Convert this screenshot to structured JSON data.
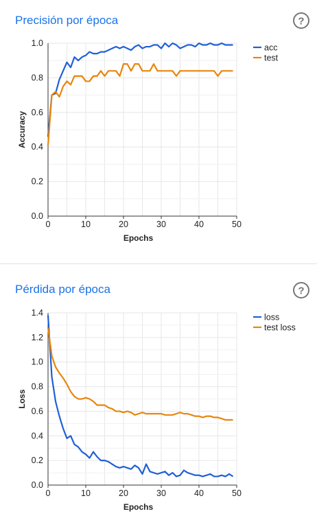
{
  "colors": {
    "series1": "#1f5fd6",
    "series2": "#e8850c",
    "title": "#1a73e8"
  },
  "chart_data": [
    {
      "type": "line",
      "title": "Precisión por época",
      "xlabel": "Epochs",
      "ylabel": "Accuracy",
      "xlim": [
        0,
        50
      ],
      "ylim": [
        0,
        1
      ],
      "xticks": [
        0,
        10,
        20,
        30,
        40,
        50
      ],
      "yticks": [
        "0.0",
        "0.2",
        "0.4",
        "0.6",
        "0.8",
        "1.0"
      ],
      "grid": true,
      "legend": "right",
      "x": [
        0,
        1,
        2,
        3,
        4,
        5,
        6,
        7,
        8,
        9,
        10,
        11,
        12,
        13,
        14,
        15,
        16,
        17,
        18,
        19,
        20,
        21,
        22,
        23,
        24,
        25,
        26,
        27,
        28,
        29,
        30,
        31,
        32,
        33,
        34,
        35,
        36,
        37,
        38,
        39,
        40,
        41,
        42,
        43,
        44,
        45,
        46,
        47,
        48,
        49
      ],
      "series": [
        {
          "name": "acc",
          "values": [
            0.46,
            0.7,
            0.71,
            0.79,
            0.84,
            0.89,
            0.86,
            0.92,
            0.9,
            0.92,
            0.93,
            0.95,
            0.94,
            0.94,
            0.95,
            0.95,
            0.96,
            0.97,
            0.98,
            0.97,
            0.98,
            0.97,
            0.96,
            0.98,
            0.99,
            0.97,
            0.98,
            0.98,
            0.99,
            0.99,
            0.97,
            1.0,
            0.98,
            1.0,
            0.99,
            0.97,
            0.98,
            0.99,
            0.99,
            0.98,
            1.0,
            0.99,
            0.99,
            1.0,
            0.99,
            0.99,
            1.0,
            0.99,
            0.99,
            0.99
          ]
        },
        {
          "name": "test",
          "values": [
            0.41,
            0.7,
            0.72,
            0.69,
            0.75,
            0.78,
            0.76,
            0.81,
            0.81,
            0.81,
            0.78,
            0.78,
            0.81,
            0.81,
            0.84,
            0.81,
            0.84,
            0.84,
            0.84,
            0.81,
            0.88,
            0.88,
            0.84,
            0.88,
            0.88,
            0.84,
            0.84,
            0.84,
            0.88,
            0.84,
            0.84,
            0.84,
            0.84,
            0.84,
            0.81,
            0.84,
            0.84,
            0.84,
            0.84,
            0.84,
            0.84,
            0.84,
            0.84,
            0.84,
            0.84,
            0.81,
            0.84,
            0.84,
            0.84,
            0.84
          ]
        }
      ]
    },
    {
      "type": "line",
      "title": "Pérdida por época",
      "xlabel": "Epochs",
      "ylabel": "Loss",
      "xlim": [
        0,
        50
      ],
      "ylim": [
        0,
        1.4
      ],
      "xticks": [
        0,
        10,
        20,
        30,
        40,
        50
      ],
      "yticks": [
        "0.0",
        "0.2",
        "0.4",
        "0.6",
        "0.8",
        "1.0",
        "1.2",
        "1.4"
      ],
      "grid": true,
      "legend": "right",
      "x": [
        0,
        1,
        2,
        3,
        4,
        5,
        6,
        7,
        8,
        9,
        10,
        11,
        12,
        13,
        14,
        15,
        16,
        17,
        18,
        19,
        20,
        21,
        22,
        23,
        24,
        25,
        26,
        27,
        28,
        29,
        30,
        31,
        32,
        33,
        34,
        35,
        36,
        37,
        38,
        39,
        40,
        41,
        42,
        43,
        44,
        45,
        46,
        47,
        48,
        49
      ],
      "series": [
        {
          "name": "loss",
          "values": [
            1.38,
            0.88,
            0.68,
            0.56,
            0.46,
            0.38,
            0.4,
            0.33,
            0.31,
            0.27,
            0.25,
            0.22,
            0.27,
            0.23,
            0.2,
            0.2,
            0.19,
            0.17,
            0.15,
            0.14,
            0.15,
            0.14,
            0.13,
            0.16,
            0.14,
            0.09,
            0.17,
            0.11,
            0.1,
            0.09,
            0.1,
            0.11,
            0.08,
            0.1,
            0.07,
            0.08,
            0.12,
            0.1,
            0.09,
            0.08,
            0.08,
            0.07,
            0.08,
            0.09,
            0.07,
            0.07,
            0.08,
            0.07,
            0.09,
            0.07
          ]
        },
        {
          "name": "test loss",
          "values": [
            1.28,
            1.05,
            0.96,
            0.91,
            0.87,
            0.82,
            0.76,
            0.72,
            0.7,
            0.7,
            0.71,
            0.7,
            0.68,
            0.65,
            0.65,
            0.65,
            0.63,
            0.62,
            0.6,
            0.6,
            0.59,
            0.6,
            0.59,
            0.57,
            0.58,
            0.59,
            0.58,
            0.58,
            0.58,
            0.58,
            0.58,
            0.57,
            0.57,
            0.57,
            0.58,
            0.59,
            0.58,
            0.58,
            0.57,
            0.56,
            0.56,
            0.55,
            0.56,
            0.56,
            0.55,
            0.55,
            0.54,
            0.53,
            0.53,
            0.53
          ]
        }
      ]
    }
  ]
}
